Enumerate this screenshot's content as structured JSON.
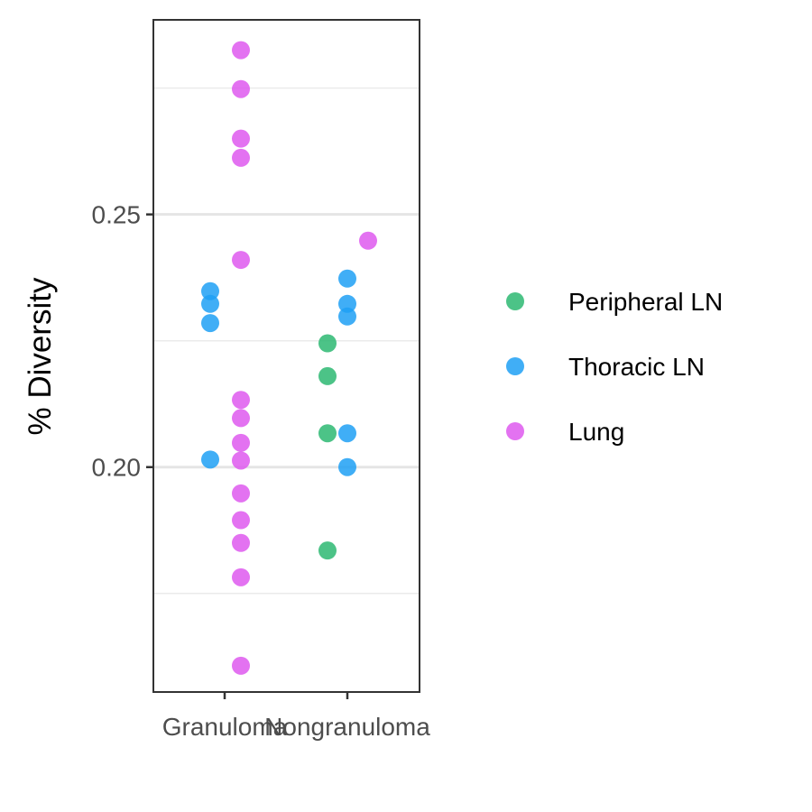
{
  "chart_data": {
    "type": "scatter",
    "title": "",
    "xlabel": "",
    "ylabel": "% Diversity",
    "categories": [
      "Granuloma",
      "Nongranuloma"
    ],
    "ylim": [
      0.1555,
      0.2885
    ],
    "y_ticks": [
      0.2,
      0.25
    ],
    "y_tick_labels": [
      "0.20",
      "0.25"
    ],
    "grid": {
      "major": true,
      "minor": true
    },
    "legend_position": "right",
    "series": [
      {
        "name": "Peripheral LN",
        "color": "#2DB872",
        "points": [
          {
            "category": "Nongranuloma",
            "y": 0.2245
          },
          {
            "category": "Nongranuloma",
            "y": 0.218
          },
          {
            "category": "Nongranuloma",
            "y": 0.2067
          },
          {
            "category": "Nongranuloma",
            "y": 0.1835
          }
        ]
      },
      {
        "name": "Thoracic LN",
        "color": "#1EA0F4",
        "points": [
          {
            "category": "Granuloma",
            "y": 0.2348
          },
          {
            "category": "Granuloma",
            "y": 0.2323
          },
          {
            "category": "Granuloma",
            "y": 0.2285
          },
          {
            "category": "Granuloma",
            "y": 0.2015
          },
          {
            "category": "Nongranuloma",
            "y": 0.2373
          },
          {
            "category": "Nongranuloma",
            "y": 0.2323
          },
          {
            "category": "Nongranuloma",
            "y": 0.2298
          },
          {
            "category": "Nongranuloma",
            "y": 0.2067
          },
          {
            "category": "Nongranuloma",
            "y": 0.2
          }
        ]
      },
      {
        "name": "Lung",
        "color": "#DE59EE",
        "points": [
          {
            "category": "Granuloma",
            "y": 0.2825
          },
          {
            "category": "Granuloma",
            "y": 0.2748
          },
          {
            "category": "Granuloma",
            "y": 0.265
          },
          {
            "category": "Granuloma",
            "y": 0.2612
          },
          {
            "category": "Granuloma",
            "y": 0.241
          },
          {
            "category": "Granuloma",
            "y": 0.2133
          },
          {
            "category": "Granuloma",
            "y": 0.2097
          },
          {
            "category": "Granuloma",
            "y": 0.2048
          },
          {
            "category": "Granuloma",
            "y": 0.2013
          },
          {
            "category": "Granuloma",
            "y": 0.1948
          },
          {
            "category": "Granuloma",
            "y": 0.1895
          },
          {
            "category": "Granuloma",
            "y": 0.185
          },
          {
            "category": "Granuloma",
            "y": 0.1782
          },
          {
            "category": "Granuloma",
            "y": 0.1607
          },
          {
            "category": "Nongranuloma",
            "y": 0.2448
          }
        ]
      }
    ]
  }
}
